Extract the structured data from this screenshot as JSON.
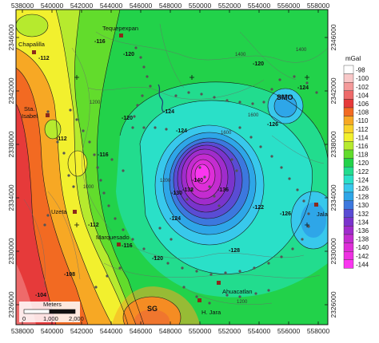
{
  "x_ticks": [
    "538000",
    "540000",
    "542000",
    "544000",
    "546000",
    "548000",
    "550000",
    "552000",
    "554000",
    "556000",
    "558000"
  ],
  "y_ticks_left": [
    "2346000",
    "2342000",
    "2338000",
    "2334000",
    "2330000",
    "2326000"
  ],
  "y_ticks_right": [
    "2346000",
    "2342000",
    "2338000",
    "2334000",
    "2330000",
    "2326000"
  ],
  "legend": {
    "unit": "mGal",
    "entries": [
      {
        "label": "-98",
        "color": "#ffffff"
      },
      {
        "label": "-100",
        "color": "#f8c8c8"
      },
      {
        "label": "-102",
        "color": "#f49a9a"
      },
      {
        "label": "-104",
        "color": "#ee6a6a"
      },
      {
        "label": "-106",
        "color": "#e63a3a"
      },
      {
        "label": "-108",
        "color": "#f26a22"
      },
      {
        "label": "-110",
        "color": "#f7a824"
      },
      {
        "label": "-112",
        "color": "#f9d32a"
      },
      {
        "label": "-114",
        "color": "#f2f02e"
      },
      {
        "label": "-116",
        "color": "#b6ea2e"
      },
      {
        "label": "-118",
        "color": "#62dc2c"
      },
      {
        "label": "-120",
        "color": "#22d24a"
      },
      {
        "label": "-122",
        "color": "#22dc8e"
      },
      {
        "label": "-124",
        "color": "#2ae0c8"
      },
      {
        "label": "-126",
        "color": "#38c8ec"
      },
      {
        "label": "-128",
        "color": "#2ea6e8"
      },
      {
        "label": "-130",
        "color": "#3c78de"
      },
      {
        "label": "-132",
        "color": "#5a4cd4"
      },
      {
        "label": "-134",
        "color": "#7a34cc"
      },
      {
        "label": "-136",
        "color": "#a02ccc"
      },
      {
        "label": "-138",
        "color": "#c42cd0"
      },
      {
        "label": "-140",
        "color": "#de2ed8"
      },
      {
        "label": "-142",
        "color": "#ee30e2"
      },
      {
        "label": "-144",
        "color": "#fa36f0"
      }
    ]
  },
  "places": {
    "tequepexpan": "Tequepexpan",
    "chapalilla": "Chapalilla",
    "sta_isabel_1": "Sta.",
    "sta_isabel_2": "Isabel",
    "uzeta": "Uzeta",
    "marquesado": "Marquesado",
    "h_jara": "H. Jara",
    "ahuacatlan": "Ahuacatlan",
    "jala": "Jala",
    "smo": "SMO",
    "sg": "SG"
  },
  "contour_labels": {
    "c116_top": "-116",
    "c112_left": "-112",
    "c120_top": "-120",
    "c120_right": "-120",
    "c124_right": "-124",
    "c124_mid": "-124",
    "c126_right": "-126",
    "c128_bottom": "-128",
    "c124_bottom": "-124",
    "c120_bottom": "-120",
    "c116_bottom": "-116",
    "c112_bottom": "-112",
    "c108_bottom": "-108",
    "c104_bottom": "-104",
    "c112_mid": "-112",
    "c116_mid": "-116",
    "c120_mid": "-120",
    "c124_center": "-124",
    "c130_center": "-130",
    "c132_center": "-132",
    "c136_center": "-136",
    "c140_center": "-140",
    "c126_mid": "-126",
    "c122_mid": "-122"
  },
  "elev_labels": {
    "e1400_top": "1400",
    "e1600_top": "1600",
    "e1200_left": "1200",
    "e1000_left": "1000",
    "e1400_right": "1400",
    "e1200_mid": "1200",
    "e1600_mid": "1600",
    "e1200_bottom": "1200"
  },
  "scale_bar": {
    "title": "Meters",
    "l0": "0",
    "l1": "1,000",
    "l2": "2,000"
  }
}
